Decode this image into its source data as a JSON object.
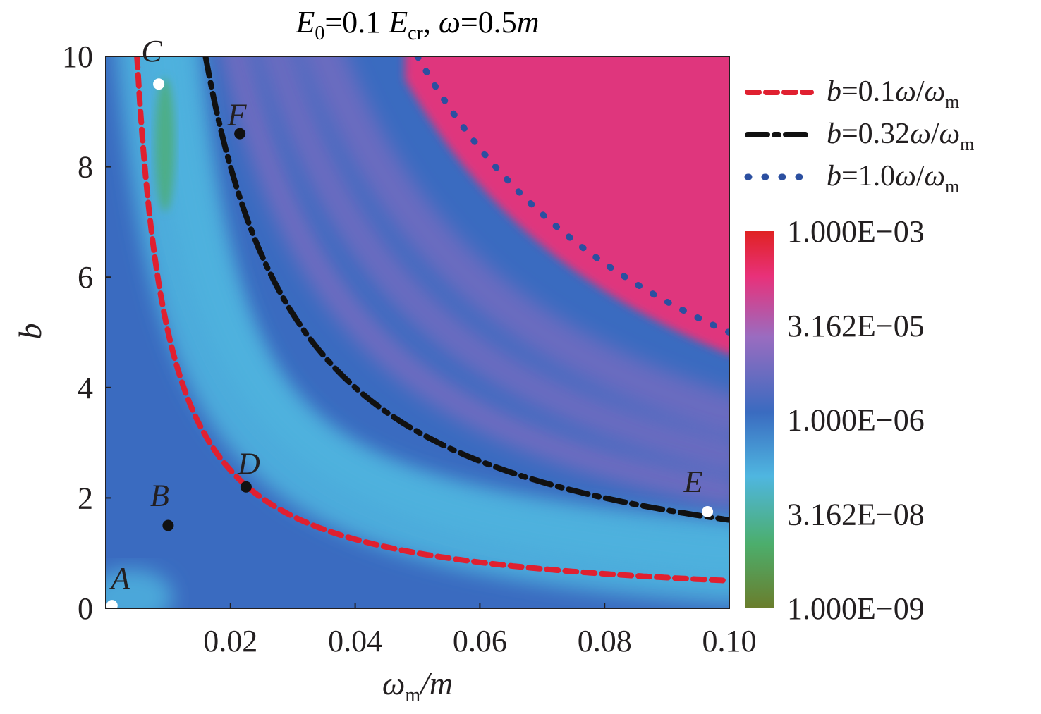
{
  "chart_data": {
    "type": "heatmap",
    "title": {
      "E": "E",
      "E_sub": "0",
      "mid": "=0.1 ",
      "Ecr": "E",
      "Ecr_sub": "cr",
      "comma": ", ",
      "omega": "ω",
      "eq": "=0.5",
      "m": "m"
    },
    "xlabel": {
      "omega": "ω",
      "sub": "m",
      "rest": "/m"
    },
    "ylabel": "b",
    "xlim": [
      0.0,
      0.1
    ],
    "ylim": [
      0,
      10
    ],
    "x_ticks": [
      0.02,
      0.04,
      0.06,
      0.08,
      0.1
    ],
    "x_tick_labels": [
      "0.02",
      "0.04",
      "0.06",
      "0.08",
      "0.10"
    ],
    "y_ticks": [
      0,
      2,
      4,
      6,
      8,
      10
    ],
    "y_tick_labels": [
      "0",
      "2",
      "4",
      "6",
      "8",
      "10"
    ],
    "omega": 0.5,
    "colorbar": {
      "scale": "log",
      "range": [
        1e-09,
        0.001
      ],
      "tick_labels": [
        "1.000E−03",
        "3.162E−05",
        "1.000E−06",
        "3.162E−08",
        "1.000E−09"
      ],
      "colors": [
        "#6a7d2c",
        "#4cae6c",
        "#4fb6e0",
        "#3a6bc0",
        "#9a6cc0",
        "#e8317a",
        "#e02222"
      ]
    },
    "series": [
      {
        "name": {
          "b": "b",
          "eq": "=0.1",
          "w": "ω",
          "slash": "/",
          "wm": "ω",
          "sub": "m"
        },
        "coef": 0.1,
        "style": "dashed",
        "color": "#e02030"
      },
      {
        "name": {
          "b": "b",
          "eq": "=0.32",
          "w": "ω",
          "slash": "/",
          "wm": "ω",
          "sub": "m"
        },
        "coef": 0.32,
        "style": "dashdot",
        "color": "#111111"
      },
      {
        "name": {
          "b": "b",
          "eq": "=1.0",
          "w": "ω",
          "slash": "/",
          "wm": "ω",
          "sub": "m"
        },
        "coef": 1.0,
        "style": "dotted",
        "color": "#2b4fa0"
      }
    ],
    "points": [
      {
        "label": "A",
        "x": 0.001,
        "y": 0.05,
        "color": "#ffffff"
      },
      {
        "label": "B",
        "x": 0.01,
        "y": 1.5,
        "color": "#111111"
      },
      {
        "label": "C",
        "x": 0.0085,
        "y": 9.5,
        "color": "#ffffff"
      },
      {
        "label": "D",
        "x": 0.0225,
        "y": 2.2,
        "color": "#111111"
      },
      {
        "label": "E",
        "x": 0.0965,
        "y": 1.75,
        "color": "#ffffff"
      },
      {
        "label": "F",
        "x": 0.0215,
        "y": 8.6,
        "color": "#111111"
      }
    ]
  }
}
